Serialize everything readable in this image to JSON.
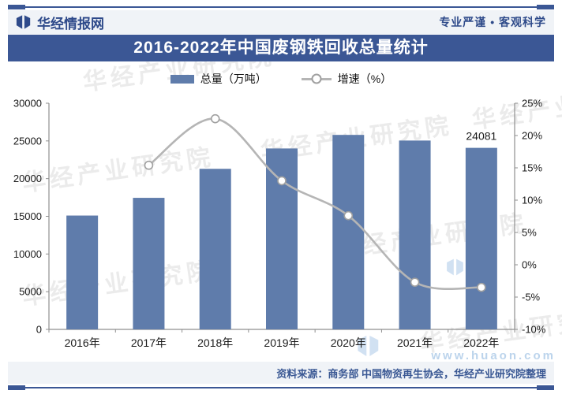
{
  "header": {
    "brand": "华经情报网",
    "slogan": "专业严谨 • 客观科学"
  },
  "title_bar": {
    "text": "2016-2022年中国废钢铁回收总量统计"
  },
  "legend": {
    "bar_label": "总量（万吨）",
    "line_label": "增速（%）"
  },
  "footer": {
    "source": "资料来源：商务部 中国物资再生协会，华经产业研究院整理"
  },
  "watermark": {
    "text": "华经产业研究院",
    "site": "www.huaon.com"
  },
  "chart_data": {
    "type": "bar",
    "title": "2016-2022年中国废钢铁回收总量统计",
    "categories": [
      "2016年",
      "2017年",
      "2018年",
      "2019年",
      "2020年",
      "2021年",
      "2022年"
    ],
    "series": [
      {
        "name": "总量（万吨）",
        "type": "bar",
        "axis": "left",
        "values": [
          15100,
          17450,
          21300,
          24000,
          25800,
          25050,
          24081
        ]
      },
      {
        "name": "增速（%）",
        "type": "line",
        "axis": "right",
        "values": [
          null,
          15.4,
          22.6,
          13,
          7.6,
          -2.7,
          -3.5
        ]
      }
    ],
    "annotations": [
      {
        "index": 6,
        "label": "24081"
      }
    ],
    "left_axis": {
      "min": 0,
      "max": 30000,
      "step": 5000,
      "ticks": [
        "0",
        "5000",
        "10000",
        "15000",
        "20000",
        "25000",
        "30000"
      ]
    },
    "right_axis": {
      "min": -10,
      "max": 25,
      "step": 5,
      "ticks": [
        "-10%",
        "-5%",
        "0%",
        "5%",
        "10%",
        "15%",
        "20%",
        "25%"
      ]
    },
    "legend_position": "top",
    "grid": false,
    "colors": {
      "bar": "#5f7cab",
      "line": "#b5b5b5",
      "marker_fill": "#ffffff",
      "marker_stroke": "#a0a0a0",
      "axis": "#8f8f8f",
      "label": "#1a1a1a",
      "accent_navy": "#3b5795"
    }
  }
}
